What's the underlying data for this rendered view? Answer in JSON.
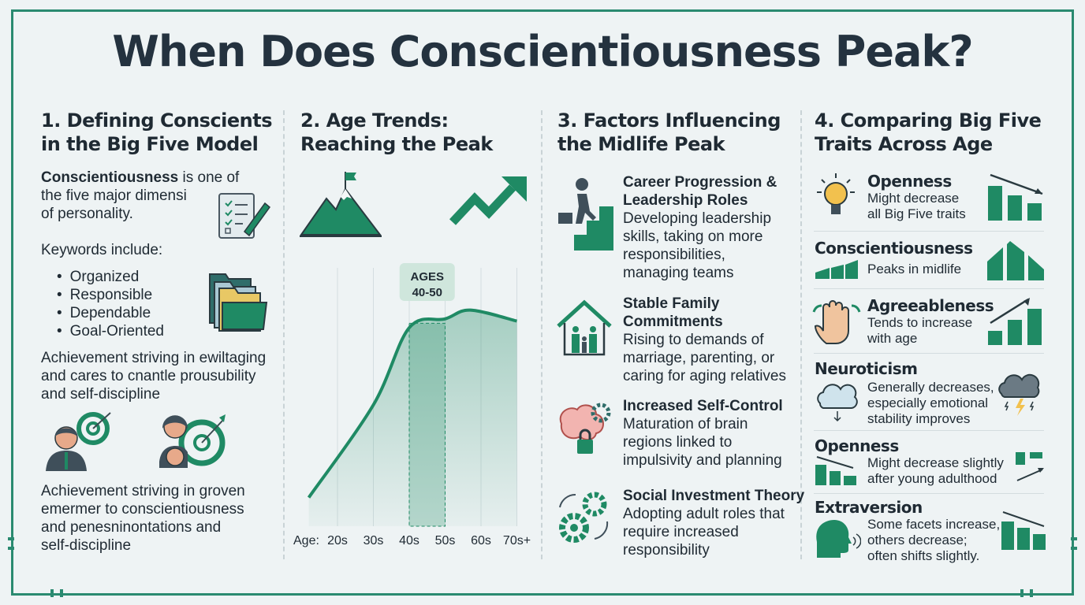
{
  "title": "When Does Conscientiousness Peak?",
  "colors": {
    "accent": "#1f8a64",
    "border": "#2a8a70",
    "text": "#1f2a33"
  },
  "section1": {
    "heading_line1": "1. Defining Conscients",
    "heading_line2": "in the Big Five Model",
    "intro_bold": "Conscientiousness",
    "intro_rest_1": " is one of",
    "intro_line2": "the five major dimensi",
    "intro_line3": "of personality.",
    "keywords_label": "Keywords include:",
    "keywords": [
      "Organized",
      "Responsible",
      "Dependable",
      "Goal-Oriented"
    ],
    "para1": [
      "Achievement striving in ewiltaging",
      "and cares to cnantle prousubility",
      "and self-discipline"
    ],
    "para2": [
      "Achievement striving in groven",
      "emermer to conscientiousness",
      "and penesninontations and",
      "self-discipline"
    ]
  },
  "section2": {
    "heading_line1": "2. Age Trends:",
    "heading_line2": "Reaching the Peak"
  },
  "chart_data": {
    "type": "area",
    "title": "Age Trends: Reaching the Peak",
    "xlabel": "Age:",
    "x_ticks": [
      "20s",
      "30s",
      "40s",
      "50s",
      "60s",
      "70s+"
    ],
    "x_tick_values": [
      20,
      30,
      40,
      50,
      60,
      70
    ],
    "x": [
      12,
      30,
      40,
      50,
      57,
      70
    ],
    "y": [
      13,
      55,
      90,
      94,
      98,
      93
    ],
    "ylim": [
      0,
      110
    ],
    "xlim": [
      12,
      72
    ],
    "highlight": {
      "label_line1": "AGES",
      "label_line2": "40-50",
      "range": [
        40,
        50
      ]
    },
    "grid": "vertical"
  },
  "section3": {
    "heading_line1": "3. Factors Influencing",
    "heading_line2": "the Midlife Peak",
    "factors": [
      {
        "title": [
          "Career Progression &",
          "Leadership Roles"
        ],
        "desc": [
          "Developing leadership",
          "skills, taking on more",
          "responsibilities,",
          "managing teams"
        ],
        "icon": "stairs-climber-icon"
      },
      {
        "title": [
          "Stable Family",
          "Commitments"
        ],
        "desc": [
          "Rising to demands of",
          "marriage, parenting, or",
          "caring for aging relatives"
        ],
        "icon": "family-house-icon"
      },
      {
        "title": [
          "Increased Self-Control"
        ],
        "desc": [
          "Maturation of brain",
          "regions linked to",
          "impulsivity and planning"
        ],
        "icon": "brain-lock-icon"
      },
      {
        "title": [
          "Social Investment Theory"
        ],
        "desc": [
          "Adopting adult roles that",
          "require increased",
          "responsibility"
        ],
        "icon": "gears-icon"
      }
    ]
  },
  "section4": {
    "heading_line1": "4. Comparing Big Five",
    "heading_line2": "Traits Across Age",
    "traits": [
      {
        "name": "Openness",
        "desc": [
          "Might decrease",
          "all Big Five traits"
        ],
        "trend": "decrease"
      },
      {
        "name": "Conscientiousness",
        "desc": [
          "Peaks in midlife"
        ],
        "trend": "peak"
      },
      {
        "name": "Agreeableness",
        "desc": [
          "Tends to increase",
          "with age"
        ],
        "trend": "increase"
      },
      {
        "name": "Neuroticism",
        "desc": [
          "Generally decreases,",
          "especially emotional",
          "stability improves"
        ],
        "trend": "decrease"
      },
      {
        "name": "Openness",
        "desc": [
          "Might decrease slightly",
          "after young adulthood"
        ],
        "trend": "decrease"
      },
      {
        "name": "Extraversion",
        "desc": [
          "Some facets increase,",
          "others decrease;",
          "often shifts slightly."
        ],
        "trend": "mixed"
      }
    ]
  }
}
